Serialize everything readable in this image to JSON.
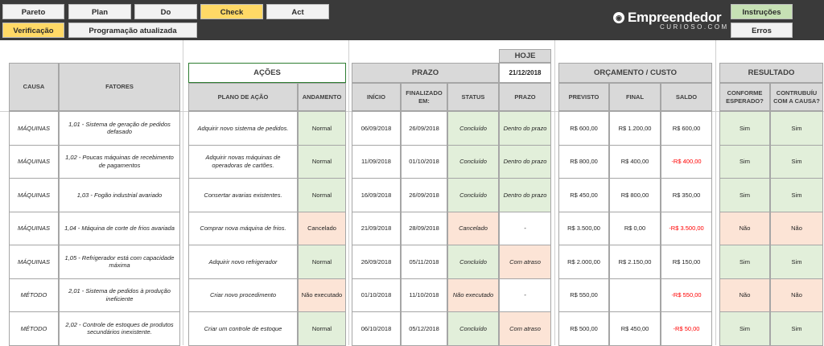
{
  "nav": {
    "pareto": "Pareto",
    "plan": "Plan",
    "do": "Do",
    "check": "Check",
    "act": "Act",
    "verificacao": "Verificação",
    "programacao": "Programação atualizada",
    "instrucoes": "Instruções",
    "erros": "Erros"
  },
  "logo": {
    "main": "Empreendedor",
    "sub": "CURIOSO.COM"
  },
  "headers": {
    "causa": "CAUSA",
    "fatores": "FATORES",
    "acoes": "AÇÕES",
    "plano": "PLANO DE AÇÃO",
    "andamento": "ANDAMENTO",
    "prazo_group": "PRAZO",
    "hoje": "HOJE",
    "hoje_date": "21/12/2018",
    "inicio": "INÍCIO",
    "finalizado": "FINALIZADO EM:",
    "status": "STATUS",
    "prazo": "PRAZO",
    "orcamento": "ORÇAMENTO / CUSTO",
    "previsto": "PREVISTO",
    "final": "FINAL",
    "saldo": "SALDO",
    "resultado": "RESULTADO",
    "conforme": "CONFORME ESPERADO?",
    "contribuiu": "CONTRUBUÍU COM A CAUSA?"
  },
  "rows": [
    {
      "causa": "MÁQUINAS",
      "fator": "1,01 - Sistema de geração de pedidos defasado",
      "plano": "Adquirir novo sistema de pedidos.",
      "andamento": "Normal",
      "inicio": "06/09/2018",
      "finalizado": "26/09/2018",
      "status": "Concluído",
      "prazo": "Dentro do prazo",
      "previsto": "R$ 600,00",
      "final": "R$ 1.200,00",
      "saldo": "R$ 600,00",
      "conforme": "Sim",
      "contribuiu": "Sim"
    },
    {
      "causa": "MÁQUINAS",
      "fator": "1,02 - Poucas máquinas de recebimento de pagamentos",
      "plano": "Adquirir novas máquinas de operadoras de cartões.",
      "andamento": "Normal",
      "inicio": "11/09/2018",
      "finalizado": "01/10/2018",
      "status": "Concluído",
      "prazo": "Dentro do prazo",
      "previsto": "R$ 800,00",
      "final": "R$ 400,00",
      "saldo": "-R$ 400,00",
      "conforme": "Sim",
      "contribuiu": "Sim"
    },
    {
      "causa": "MÁQUINAS",
      "fator": "1,03 - Fogão industrial avariado",
      "plano": "Consertar avarias existentes.",
      "andamento": "Normal",
      "inicio": "16/09/2018",
      "finalizado": "26/09/2018",
      "status": "Concluído",
      "prazo": "Dentro do prazo",
      "previsto": "R$ 450,00",
      "final": "R$ 800,00",
      "saldo": "R$ 350,00",
      "conforme": "Sim",
      "contribuiu": "Sim"
    },
    {
      "causa": "MÁQUINAS",
      "fator": "1,04 - Máquina de corte de frios avariada",
      "plano": "Comprar nova máquina de frios.",
      "andamento": "Cancelado",
      "inicio": "21/09/2018",
      "finalizado": "28/09/2018",
      "status": "Cancelado",
      "prazo": "-",
      "previsto": "R$ 3.500,00",
      "final": "R$ 0,00",
      "saldo": "-R$ 3.500,00",
      "conforme": "Não",
      "contribuiu": "Não"
    },
    {
      "causa": "MÁQUINAS",
      "fator": "1,05 - Refrigerador está com capacidade máxima",
      "plano": "Adquirir novo refrigerador",
      "andamento": "Normal",
      "inicio": "26/09/2018",
      "finalizado": "05/11/2018",
      "status": "Concluído",
      "prazo": "Com atraso",
      "previsto": "R$ 2.000,00",
      "final": "R$ 2.150,00",
      "saldo": "R$ 150,00",
      "conforme": "Sim",
      "contribuiu": "Sim"
    },
    {
      "causa": "MÉTODO",
      "fator": "2,01 - Sistema de pedidos à produção ineficiente",
      "plano": "Criar novo procedimento",
      "andamento": "Não executado",
      "inicio": "01/10/2018",
      "finalizado": "11/10/2018",
      "status": "Não executado",
      "prazo": "-",
      "previsto": "R$ 550,00",
      "final": "",
      "saldo": "-R$ 550,00",
      "conforme": "Não",
      "contribuiu": "Não"
    },
    {
      "causa": "MÉTODO",
      "fator": "2,02 - Controle de estoques de produtos secundários inexistente.",
      "plano": "Criar um controle de estoque",
      "andamento": "Normal",
      "inicio": "06/10/2018",
      "finalizado": "05/12/2018",
      "status": "Concluído",
      "prazo": "Com atraso",
      "previsto": "R$ 500,00",
      "final": "R$ 450,00",
      "saldo": "-R$ 50,00",
      "conforme": "Sim",
      "contribuiu": "Sim"
    }
  ],
  "colors": {
    "topbar": "#3a3a3a",
    "header_gray": "#d9d9d9",
    "ok_green": "#e2efda",
    "warn_pink": "#fce4d6",
    "negative_red": "#ff0000",
    "active_tab_yellow": "#ffd966"
  }
}
